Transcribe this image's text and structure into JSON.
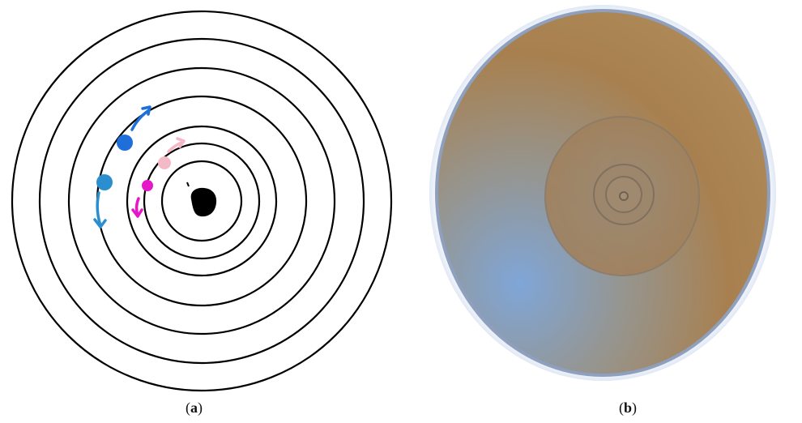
{
  "panels": [
    {
      "caption_open": "(",
      "caption_letter": "a",
      "caption_close": ")",
      "ring_count": 7,
      "marker_colors": {
        "outer_top": "#1e6fd9",
        "outer_left": "#2b8fcf",
        "inner_top": "#f4b8c6",
        "inner_left": "#e617c8"
      }
    },
    {
      "caption_open": "(",
      "caption_letter": "b",
      "caption_close": ")",
      "surface_colors": {
        "warm": "#a8804f",
        "cool": "#7fa6d8",
        "rim": "#8fa0bf"
      }
    }
  ]
}
